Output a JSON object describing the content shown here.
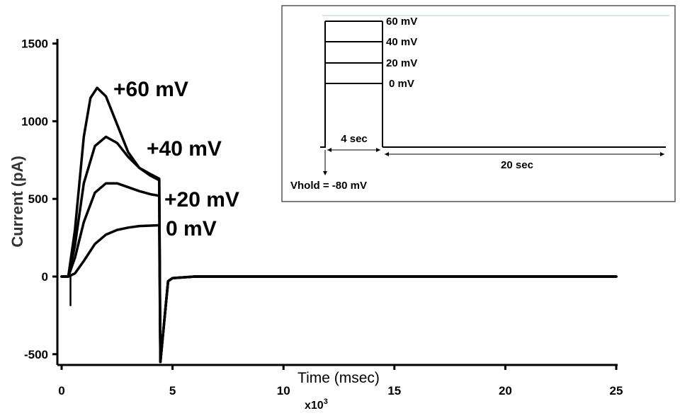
{
  "chart_data": {
    "type": "line",
    "xlabel": "Time (msec)",
    "x_multiplier": "x10",
    "x_multiplier_exp": "3",
    "ylabel": "Current (pA)",
    "xlim": [
      0,
      25
    ],
    "ylim": [
      -550,
      1500
    ],
    "x_ticks": [
      "0",
      "5",
      "10",
      "15",
      "20",
      "25"
    ],
    "y_ticks": [
      "1500",
      "1000",
      "500",
      "0",
      "-500"
    ],
    "grid": false,
    "series": [
      {
        "name": "+60 mV",
        "x": [
          0,
          0.3,
          0.6,
          1.0,
          1.3,
          1.6,
          2.0,
          2.5,
          3.0,
          3.5,
          4.0,
          4.4,
          4.45,
          4.8,
          5.0,
          6,
          25
        ],
        "y": [
          0,
          0,
          300,
          900,
          1150,
          1215,
          1160,
          980,
          800,
          700,
          650,
          620,
          -550,
          -30,
          -10,
          0,
          0
        ]
      },
      {
        "name": "+40 mV",
        "x": [
          0,
          0.3,
          0.6,
          1.0,
          1.5,
          2.0,
          2.5,
          3.0,
          3.5,
          4.0,
          4.4,
          4.45,
          4.8,
          5.0,
          6,
          25
        ],
        "y": [
          0,
          0,
          200,
          600,
          840,
          900,
          860,
          770,
          700,
          660,
          630,
          -550,
          -30,
          -10,
          0,
          0
        ]
      },
      {
        "name": "+20 mV",
        "x": [
          0,
          0.3,
          0.6,
          1.0,
          1.5,
          2.0,
          2.5,
          3.0,
          3.5,
          4.0,
          4.4,
          4.45,
          4.8,
          5.0,
          6,
          25
        ],
        "y": [
          0,
          0,
          120,
          350,
          540,
          600,
          600,
          575,
          550,
          530,
          520,
          -550,
          -30,
          -10,
          0,
          0
        ]
      },
      {
        "name": "0 mV",
        "x": [
          0,
          0.3,
          0.6,
          1.0,
          1.5,
          2.0,
          2.5,
          3.0,
          3.5,
          4.0,
          4.4,
          4.45,
          4.8,
          5.0,
          6,
          25
        ],
        "y": [
          0,
          0,
          20,
          100,
          210,
          270,
          300,
          315,
          325,
          328,
          330,
          -550,
          -30,
          -10,
          0,
          0
        ]
      }
    ]
  },
  "inset": {
    "levels": [
      "60 mV",
      "40 mV",
      "20 mV",
      "0 mV"
    ],
    "duration_pulse": "4 sec",
    "duration_rest": "20 sec",
    "holding": "Vhold = -80 mV"
  }
}
